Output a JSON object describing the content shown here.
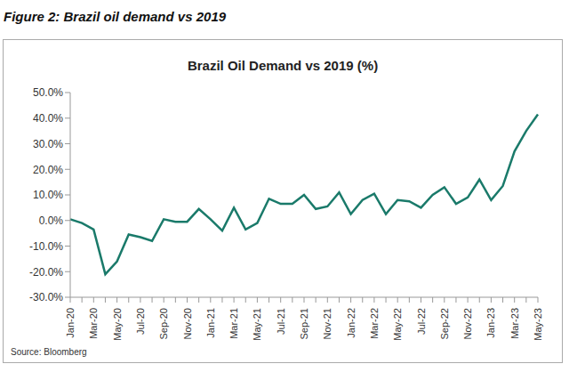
{
  "chart_data": {
    "type": "line",
    "figure_title": "Figure 2: Brazil oil demand vs 2019",
    "title": "Brazil Oil Demand vs 2019 (%)",
    "source": "Source: Bloomberg",
    "categories": [
      "Jan-20",
      null,
      "Mar-20",
      null,
      "May-20",
      null,
      "Jul-20",
      null,
      "Sep-20",
      null,
      "Nov-20",
      null,
      "Jan-21",
      null,
      "Mar-21",
      null,
      "May-21",
      null,
      "Jul-21",
      null,
      "Sep-21",
      null,
      "Nov-21",
      null,
      "Jan-22",
      null,
      "Mar-22",
      null,
      "May-22",
      null,
      "Jul-22",
      null,
      "Sep-22",
      null,
      "Nov-22",
      null,
      "Jan-23",
      null,
      "Mar-23",
      null,
      "May-23"
    ],
    "values": [
      0.5,
      -1,
      -3.5,
      -21,
      -16,
      -5.5,
      -6.5,
      -8,
      0.5,
      -0.5,
      -0.5,
      4.5,
      0.5,
      -4,
      5,
      -3.5,
      -1,
      8.5,
      6.5,
      6.5,
      10,
      4.5,
      5.5,
      11,
      2.5,
      8,
      10.5,
      2.5,
      8,
      7.5,
      5,
      10,
      13,
      6.5,
      9,
      16,
      8,
      13.5,
      27,
      35,
      41.5
    ],
    "color": "#1a7a6a",
    "ylim": [
      -30,
      50
    ],
    "yticks": [
      {
        "value": -30,
        "label": "-30.0%"
      },
      {
        "value": -20,
        "label": "-20.0%"
      },
      {
        "value": -10,
        "label": "-10.0%"
      },
      {
        "value": 0,
        "label": "0.0%"
      },
      {
        "value": 10,
        "label": "10.0%"
      },
      {
        "value": 20,
        "label": "20.0%"
      },
      {
        "value": 30,
        "label": "30.0%"
      },
      {
        "value": 40,
        "label": "40.0%"
      },
      {
        "value": 50,
        "label": "50.0%"
      }
    ],
    "grid": false
  }
}
